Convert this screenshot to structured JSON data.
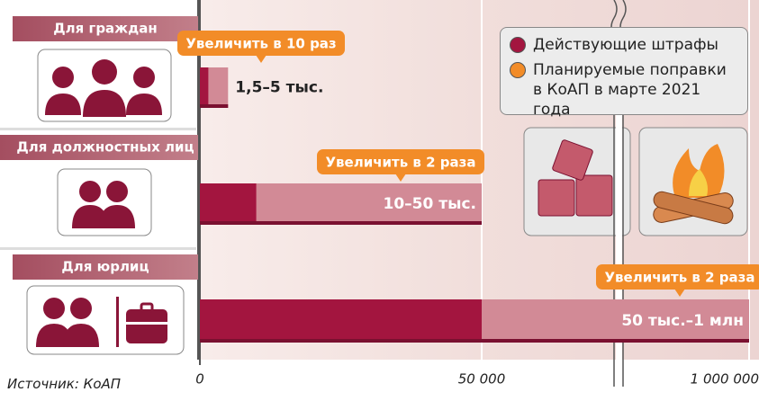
{
  "chart_data": {
    "type": "range-bar",
    "orientation": "horizontal",
    "categories": [
      "Для граждан",
      "Для должностных лиц",
      "Для юрлиц"
    ],
    "series": [
      {
        "name": "Действующие штрафы",
        "color": "#a3153f",
        "light_color": "#d28a96",
        "low": [
          1500,
          10000,
          50000
        ],
        "values": [
          5000,
          50000,
          1000000
        ],
        "value_labels": [
          "1,5–5 тыс.",
          "10–50 тыс.",
          "50 тыс.–1 млн"
        ]
      },
      {
        "name": "Планируемые поправки в КоАП в марте 2021 года",
        "color": "#f28c28",
        "labels": [
          "Увеличить в 10 раз",
          "Увеличить в 2 раза",
          "Увеличить в 2 раза"
        ]
      }
    ],
    "xlim": [
      0,
      1000000
    ],
    "xticks": [
      0,
      {
        "value": 50000,
        "label": "50 000"
      },
      {
        "value": 1000000,
        "label": "1 000 000"
      }
    ],
    "axis_break": true,
    "source": "Источник: КоАП"
  }
}
